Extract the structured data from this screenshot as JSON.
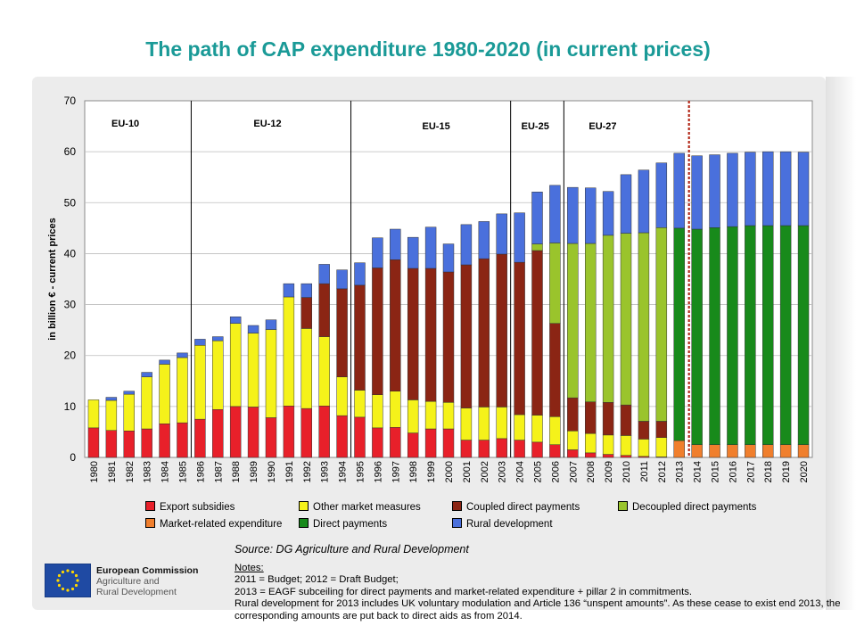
{
  "page": {
    "title": "The path of CAP expenditure 1980-2020 (in current prices)"
  },
  "chart_data": {
    "type": "bar",
    "stacked": true,
    "ylabel": "in billion € - current prices",
    "xlabel": "",
    "ylim": [
      0,
      70
    ],
    "yticks": [
      0,
      10,
      20,
      30,
      40,
      50,
      60,
      70
    ],
    "grid": true,
    "legend_position": "bottom",
    "categories": [
      "1980",
      "1981",
      "1982",
      "1983",
      "1984",
      "1985",
      "1986",
      "1987",
      "1988",
      "1989",
      "1990",
      "1991",
      "1992",
      "1993",
      "1994",
      "1995",
      "1996",
      "1997",
      "1998",
      "1999",
      "2000",
      "2001",
      "2002",
      "2003",
      "2004",
      "2005",
      "2006",
      "2007",
      "2008",
      "2009",
      "2010",
      "2011",
      "2012",
      "2013",
      "2014",
      "2015",
      "2016",
      "2017",
      "2018",
      "2019",
      "2020"
    ],
    "series": [
      {
        "name": "Export subsidies",
        "color": "#e8202a",
        "values": [
          5.8,
          5.3,
          5.2,
          5.6,
          6.6,
          6.8,
          7.5,
          9.4,
          10,
          9.9,
          7.8,
          10.1,
          9.6,
          10.1,
          8.2,
          7.9,
          5.8,
          5.9,
          4.8,
          5.6,
          5.6,
          3.4,
          3.4,
          3.7,
          3.4,
          3.0,
          2.5,
          1.5,
          0.9,
          0.6,
          0.4,
          0.2,
          0.1,
          0,
          0,
          0,
          0,
          0,
          0,
          0,
          0
        ]
      },
      {
        "name": "Other market measures",
        "color": "#f5f21a",
        "values": [
          5.5,
          5.9,
          7.2,
          10.2,
          11.7,
          12.8,
          14.5,
          13.5,
          16.3,
          14.5,
          17.3,
          21.4,
          15.7,
          13.6,
          7.6,
          5.3,
          6.5,
          7.1,
          6.5,
          5.4,
          5.2,
          6.3,
          6.5,
          6.2,
          5.0,
          5.3,
          5.5,
          3.7,
          3.8,
          3.8,
          3.9,
          3.4,
          3.8,
          0,
          0,
          0,
          0,
          0,
          0,
          0,
          0
        ]
      },
      {
        "name": "Coupled direct payments",
        "color": "#8b2514",
        "values": [
          0,
          0,
          0,
          0,
          0,
          0,
          0,
          0,
          0,
          0,
          0,
          0,
          6.1,
          10.4,
          17.3,
          20.6,
          24.9,
          25.8,
          25.8,
          26.1,
          25.6,
          28.1,
          29.1,
          30,
          29.9,
          32.3,
          18.3,
          6.5,
          6.2,
          6.4,
          6.0,
          3.5,
          3.2,
          0,
          0,
          0,
          0,
          0,
          0,
          0,
          0
        ]
      },
      {
        "name": "Decoupled direct payments",
        "color": "#9ac42c",
        "values": [
          0,
          0,
          0,
          0,
          0,
          0,
          0,
          0,
          0,
          0,
          0,
          0,
          0,
          0,
          0,
          0,
          0,
          0,
          0,
          0,
          0,
          0,
          0,
          0,
          0,
          1.3,
          15.8,
          30.3,
          31.1,
          32.8,
          33.7,
          37,
          38,
          0,
          0,
          0,
          0,
          0,
          0,
          0,
          0
        ]
      },
      {
        "name": "Market-related expenditure",
        "color": "#f07f2d",
        "values": [
          0,
          0,
          0,
          0,
          0,
          0,
          0,
          0,
          0,
          0,
          0,
          0,
          0,
          0,
          0,
          0,
          0,
          0,
          0,
          0,
          0,
          0,
          0,
          0,
          0,
          0,
          0,
          0,
          0,
          0,
          0,
          0,
          0,
          3.3,
          2.5,
          2.5,
          2.5,
          2.5,
          2.5,
          2.5,
          2.5
        ]
      },
      {
        "name": "Direct payments",
        "color": "#188a1b",
        "values": [
          0,
          0,
          0,
          0,
          0,
          0,
          0,
          0,
          0,
          0,
          0,
          0,
          0,
          0,
          0,
          0,
          0,
          0,
          0,
          0,
          0,
          0,
          0,
          0,
          0,
          0,
          0,
          0,
          0,
          0,
          0,
          0,
          0,
          41.7,
          42.3,
          42.6,
          42.8,
          43.0,
          43.0,
          43.0,
          43.0
        ]
      },
      {
        "name": "Rural development",
        "color": "#4a70dc",
        "values": [
          0,
          0.6,
          0.6,
          0.9,
          0.8,
          0.9,
          1.2,
          0.8,
          1.3,
          1.5,
          1.9,
          2.6,
          2.7,
          3.8,
          3.7,
          4.4,
          5.9,
          6.0,
          6.1,
          8.1,
          5.5,
          7.9,
          7.3,
          7.9,
          9.7,
          10.2,
          11.3,
          11.0,
          10.9,
          8.6,
          11.5,
          12.3,
          12.7,
          14.7,
          14.4,
          14.3,
          14.4,
          14.4,
          14.5,
          14.5,
          14.4
        ]
      }
    ],
    "periods": [
      {
        "label": "EU-10",
        "start": "1980",
        "end": "1985"
      },
      {
        "label": "EU-12",
        "start": "1986",
        "end": "1994"
      },
      {
        "label": "EU-15",
        "start": "1995",
        "end": "2003"
      },
      {
        "label": "EU-25",
        "start": "2004",
        "end": "2006"
      },
      {
        "label": "EU-27",
        "start": "2007",
        "end": "2020"
      }
    ],
    "forecast_marker_after": "2013"
  },
  "source": "Source: DG Agriculture and Rural Development",
  "notes": {
    "heading": "Notes:",
    "lines": [
      "2011 = Budget; 2012 = Draft Budget;",
      "2013 = EAGF subceiling for direct payments and market-related expenditure + pillar 2 in commitments.",
      "Rural development for 2013 includes UK voluntary modulation and Article 136 “unspent amounts”. As these cease to exist end 2013, the corresponding amounts are put back to direct aids as from 2014."
    ]
  },
  "logo": {
    "org": "European Commission",
    "dg_line1": "Agriculture and",
    "dg_line2": "Rural Development",
    "flag_color": "#1f4aa3",
    "star_color": "#ffd700"
  }
}
